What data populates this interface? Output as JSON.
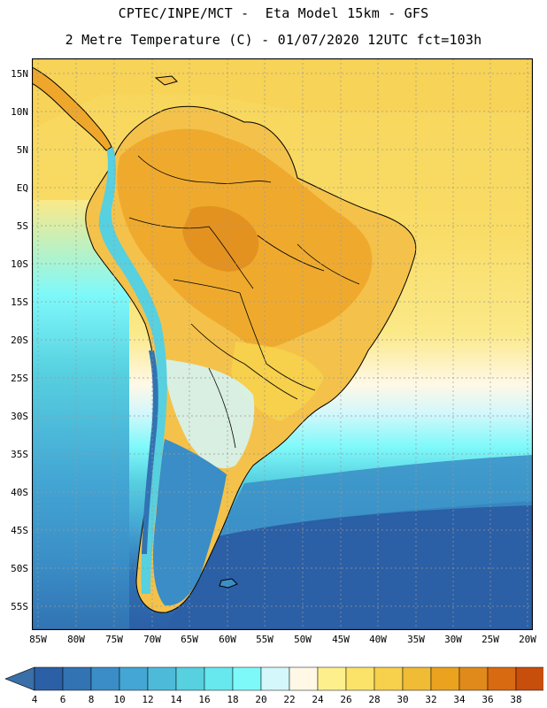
{
  "header": {
    "line1": "CPTEC/INPE/MCT -  Eta Model 15km - GFS",
    "line2": "2 Metre Temperature (C) - 01/07/2020 12UTC fct=103h"
  },
  "axes": {
    "lat_labels": [
      "15N",
      "10N",
      "5N",
      "EQ",
      "5S",
      "10S",
      "15S",
      "20S",
      "25S",
      "30S",
      "35S",
      "40S",
      "45S",
      "50S",
      "55S"
    ],
    "lon_labels": [
      "85W",
      "80W",
      "75W",
      "70W",
      "65W",
      "60W",
      "55W",
      "50W",
      "45W",
      "40W",
      "35W",
      "30W",
      "25W",
      "20W"
    ]
  },
  "colorbar": {
    "ticks": [
      "4",
      "6",
      "8",
      "10",
      "12",
      "14",
      "16",
      "18",
      "20",
      "22",
      "24",
      "26",
      "28",
      "30",
      "32",
      "34",
      "36",
      "38"
    ],
    "colors": [
      "#2b5fa6",
      "#3173b3",
      "#3a8dc6",
      "#43a6d4",
      "#4ebad9",
      "#57d0e0",
      "#66e8ee",
      "#7ef9fa",
      "#d4f7fb",
      "#fff8e6",
      "#fdf08c",
      "#fbe36a",
      "#f7d04c",
      "#f0bb35",
      "#eaa21f",
      "#e08a1b",
      "#d86a12",
      "#c84e0c",
      "#b3380a"
    ],
    "under_color": "#3a6fa8",
    "over_color": "#b3380a"
  },
  "map_colors": {
    "ocean_warm": "#f6d75a",
    "ocean_mid": "#fbe988",
    "land_hot": "#eea72b",
    "land_warm": "#f4c24a",
    "andes": "#57d0e0",
    "cold_sea": "#2b5fa6",
    "grid": "#aaaaaa",
    "coast": "#000000"
  }
}
